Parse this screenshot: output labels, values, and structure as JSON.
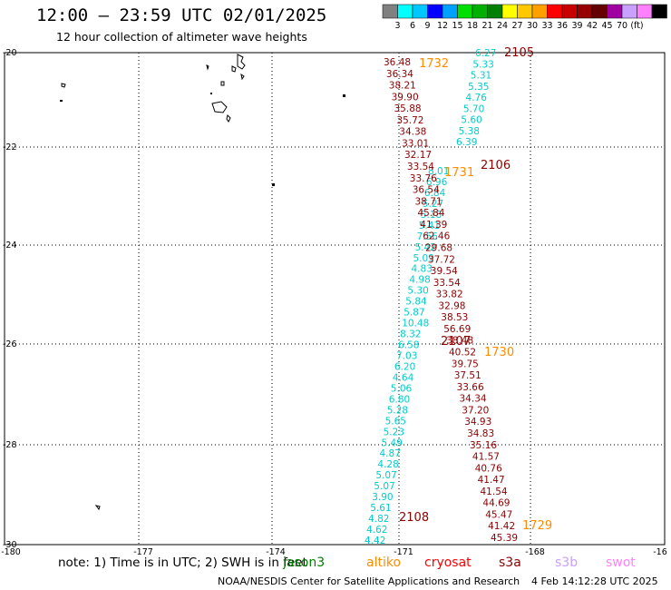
{
  "header": {
    "title": "12:00 — 23:59 UTC 02/01/2025",
    "subtitle": "12 hour collection of altimeter wave heights"
  },
  "legend": {
    "colors": [
      "#808080",
      "#00ffff",
      "#00c8ff",
      "#0000ff",
      "#00a0ff",
      "#00e000",
      "#00b000",
      "#008000",
      "#ffff00",
      "#ffc800",
      "#ffa000",
      "#ff0000",
      "#c80000",
      "#960000",
      "#640000",
      "#a000a0",
      "#c8a0ff",
      "#ff80ff",
      "#000000"
    ],
    "labels": [
      "3",
      "6",
      "9",
      "12",
      "15",
      "18",
      "21",
      "24",
      "27",
      "30",
      "33",
      "36",
      "39",
      "42",
      "45",
      "70",
      "(ft)"
    ]
  },
  "axes": {
    "lat_labels": [
      "-20",
      "-22",
      "-24",
      "-26",
      "-28",
      "-30"
    ],
    "lon_labels": [
      "-180",
      "-177",
      "-174",
      "-171",
      "-168",
      "-16"
    ]
  },
  "tracks": [
    {
      "name": "track-a-left",
      "color": "#00cccc",
      "values": [
        "8.01",
        "6.96",
        "6.84",
        "5.27",
        "5.18",
        "5.41",
        "7.56",
        "5.42",
        "5.09",
        "4.83",
        "4.98",
        "5.30",
        "5.84",
        "5.87",
        "10.48",
        "8.32",
        "6.58",
        "7.03",
        "6.20",
        "4.64",
        "5.06",
        "6.80",
        "5.28",
        "5.65",
        "5.23",
        "5.49",
        "4.87",
        "4.28",
        "5.07",
        "5.07",
        "3.90",
        "5.61",
        "4.82",
        "4.62",
        "4.42"
      ]
    },
    {
      "name": "track-a-right",
      "color": "#00cccc",
      "values": [
        "6.27",
        "5.33",
        "5.31",
        "5.35",
        "4.76",
        "5.70",
        "5.60",
        "5.38",
        "6.39"
      ]
    },
    {
      "name": "track-b",
      "color": "#8b0000",
      "values": [
        "36.48",
        "36.34",
        "38.21",
        "39.90",
        "35.88",
        "35.72",
        "34.38",
        "33.01",
        "32.17",
        "33.54",
        "33.76",
        "36.54",
        "38.71",
        "45.84",
        "41.39",
        "62.46",
        "29.68",
        "37.72",
        "39.54",
        "33.54",
        "33.82",
        "32.98",
        "38.53",
        "56.69",
        "38.48",
        "40.52",
        "39.75",
        "37.51",
        "33.66",
        "34.34",
        "37.20",
        "34.93",
        "34.83",
        "35.16",
        "41.57",
        "40.76",
        "41.47",
        "41.54",
        "44.69",
        "45.47",
        "41.42",
        "45.39"
      ]
    }
  ],
  "track_labels": [
    {
      "text": "2105",
      "color": "#8b0000"
    },
    {
      "text": "1732",
      "color": "#ff8c00"
    },
    {
      "text": "2106",
      "color": "#8b0000"
    },
    {
      "text": "1731",
      "color": "#ff8c00"
    },
    {
      "text": "2107",
      "color": "#8b0000"
    },
    {
      "text": "1730",
      "color": "#ff8c00"
    },
    {
      "text": "2108",
      "color": "#8b0000"
    },
    {
      "text": "1729",
      "color": "#ff8c00"
    }
  ],
  "footer": {
    "note": "note: 1) Time is in UTC; 2) SWH is in feet",
    "satellites": [
      {
        "name": "jason3",
        "color": "#008000"
      },
      {
        "name": "altiko",
        "color": "#ff8c00"
      },
      {
        "name": "cryosat",
        "color": "#ff0000"
      },
      {
        "name": "s3a",
        "color": "#8b0000"
      },
      {
        "name": "s3b",
        "color": "#c8a0ff"
      },
      {
        "name": "swot",
        "color": "#ff80ff"
      }
    ],
    "credit": "NOAA/NESDIS Center for Satellite Applications and Research",
    "timestamp": "4 Feb 14:12:28 UTC 2025"
  }
}
